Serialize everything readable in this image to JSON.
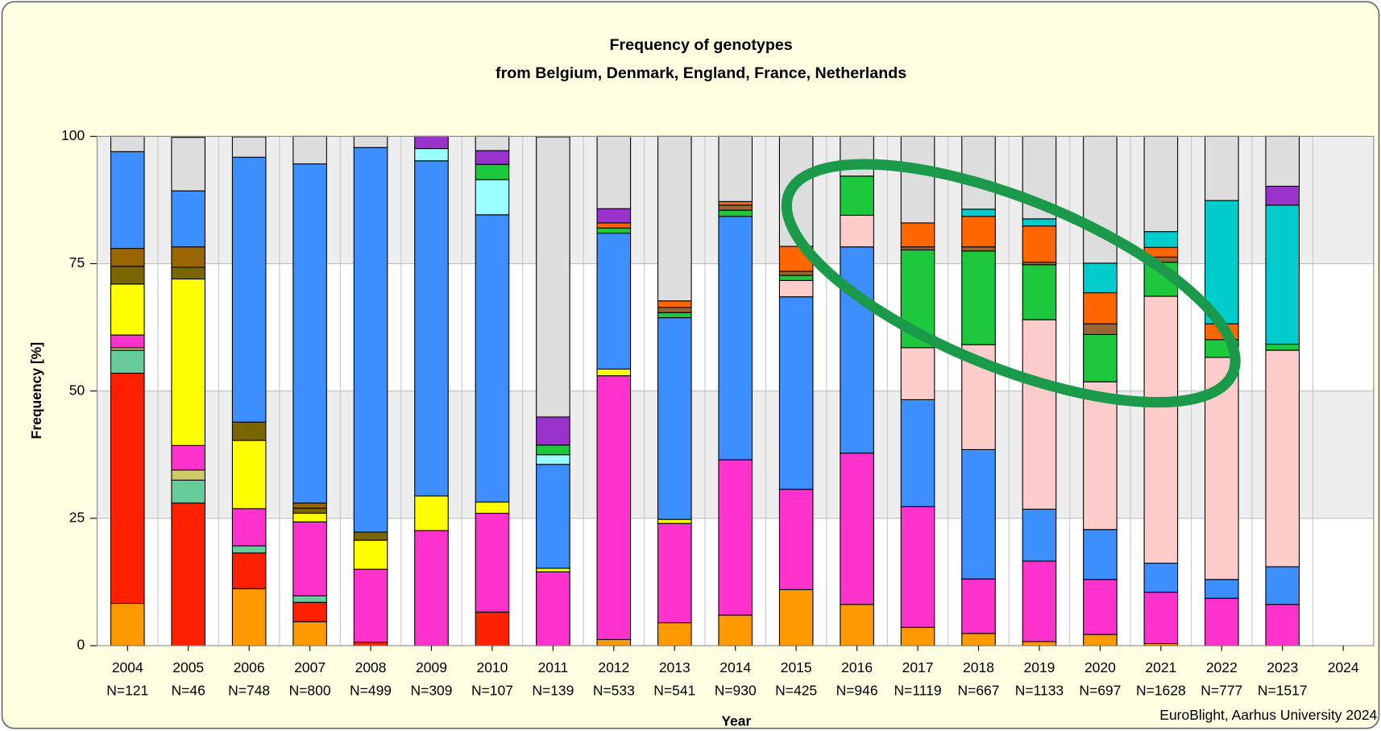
{
  "chart_data": {
    "type": "bar",
    "stacked": true,
    "title": "Frequency of genotypes",
    "subtitle": "from Belgium, Denmark, England, France, Netherlands",
    "ylabel": "Frequency [%]",
    "xlabel": "Year",
    "source": "EuroBlight, Aarhus University 2024",
    "categories": [
      "2004",
      "2005",
      "2006",
      "2007",
      "2008",
      "2009",
      "2010",
      "2011",
      "2012",
      "2013",
      "2014",
      "2015",
      "2016",
      "2017",
      "2018",
      "2019",
      "2020",
      "2021",
      "2022",
      "2023",
      "2024"
    ],
    "sample_sizes": [
      "N=121",
      "N=46",
      "N=748",
      "N=800",
      "N=499",
      "N=309",
      "N=107",
      "N=139",
      "N=533",
      "N=541",
      "N=930",
      "N=425",
      "N=946",
      "N=1119",
      "N=667",
      "N=1133",
      "N=697",
      "N=1628",
      "N=777",
      "N=1517",
      null
    ],
    "ylim": [
      0,
      100
    ],
    "yticks": [
      0,
      25,
      50,
      75,
      100
    ],
    "grid": true,
    "series": [
      {
        "color": "#ff9900",
        "values": [
          8.3,
          0,
          11.2,
          4.7,
          0,
          0,
          0,
          0,
          1.2,
          4.5,
          6,
          11,
          8.1,
          3.6,
          2.4,
          0.8,
          2.2,
          0.4,
          0,
          0,
          null
        ]
      },
      {
        "color": "#ff2000",
        "values": [
          45.2,
          28,
          7,
          3.8,
          0.7,
          0,
          6.6,
          0,
          0,
          0,
          0,
          0,
          0,
          0,
          0,
          0,
          0,
          0,
          0,
          0,
          null
        ]
      },
      {
        "color": "#66cc99",
        "values": [
          4.5,
          4.5,
          1.4,
          1.3,
          0,
          0,
          0,
          0,
          0,
          0,
          0,
          0,
          0,
          0,
          0,
          0,
          0,
          0,
          0,
          0,
          null
        ]
      },
      {
        "color": "#cccc66",
        "values": [
          0.5,
          2,
          0,
          0,
          0,
          0,
          0,
          0,
          0,
          0,
          0,
          0,
          0,
          0,
          0,
          0,
          0,
          0,
          0,
          0,
          null
        ]
      },
      {
        "color": "#ff33cc",
        "values": [
          2.5,
          4.8,
          7.3,
          14.5,
          14.3,
          22.6,
          19.4,
          14.5,
          51.8,
          19.5,
          30.5,
          19.7,
          29.7,
          23.7,
          10.7,
          15.8,
          10.8,
          10.1,
          9.3,
          8.1,
          null
        ]
      },
      {
        "color": "#ffff00",
        "values": [
          10,
          32.7,
          13.4,
          1.7,
          5.7,
          6.8,
          2.2,
          0.7,
          1.3,
          0.8,
          0,
          0,
          0,
          0,
          0,
          0,
          0,
          0,
          0,
          0,
          null
        ]
      },
      {
        "color": "#7a6600",
        "values": [
          3.5,
          2.3,
          3.6,
          1,
          1.6,
          0,
          0,
          0,
          0,
          0,
          0,
          0,
          0,
          0,
          0,
          0,
          0,
          0,
          0,
          0,
          null
        ]
      },
      {
        "color": "#996600",
        "values": [
          3.5,
          4,
          0,
          1,
          0,
          0,
          0,
          0,
          0,
          0,
          0,
          0,
          0,
          0,
          0,
          0,
          0,
          0,
          0,
          0,
          null
        ]
      },
      {
        "color": "#3d8eff",
        "values": [
          19,
          11,
          52,
          66.6,
          75.5,
          65.8,
          56.4,
          20.4,
          26.7,
          39.6,
          47.8,
          37.8,
          40.5,
          21,
          25.4,
          10.2,
          9.8,
          5.7,
          3.7,
          7.4,
          null
        ]
      },
      {
        "color": "#ffcccc",
        "values": [
          0,
          0,
          0,
          0,
          0,
          0,
          0,
          0,
          0,
          0,
          0,
          3.2,
          6.2,
          10.2,
          20.6,
          37.2,
          29,
          52.4,
          43.6,
          42.5,
          null
        ]
      },
      {
        "color": "#99ffff",
        "values": [
          0,
          0,
          0,
          0,
          0,
          2.4,
          6.9,
          1.9,
          0,
          0,
          0,
          0,
          0,
          0,
          0,
          0,
          0,
          0,
          0,
          0,
          null
        ]
      },
      {
        "color": "#1ec83c",
        "values": [
          0,
          0,
          0,
          0,
          0,
          0,
          3,
          1.9,
          1,
          1,
          1.2,
          1,
          7.7,
          19.2,
          18.4,
          10.8,
          9.3,
          6.7,
          3.5,
          1.2,
          null
        ]
      },
      {
        "color": "#996633",
        "values": [
          0,
          0,
          0,
          0,
          0,
          0,
          0,
          0,
          0,
          1,
          1,
          0.8,
          0,
          0.6,
          0.8,
          0.5,
          2.1,
          1,
          0,
          0,
          null
        ]
      },
      {
        "color": "#ff6600",
        "values": [
          0,
          0,
          0,
          0,
          0,
          0,
          0,
          0,
          1,
          1.3,
          0.7,
          4.9,
          0,
          4.7,
          6,
          7.1,
          6.1,
          1.9,
          3.1,
          0,
          null
        ]
      },
      {
        "color": "#00cccc",
        "values": [
          0,
          0,
          0,
          0,
          0,
          0,
          0,
          0,
          0,
          0,
          0,
          0,
          0,
          0,
          1.4,
          1.4,
          5.8,
          3.1,
          24.2,
          27.3,
          null
        ]
      },
      {
        "color": "#9933cc",
        "values": [
          0,
          0,
          0,
          0,
          0,
          2.4,
          2.7,
          5.5,
          2.8,
          0,
          0,
          0,
          0,
          0,
          0,
          0,
          0,
          0,
          0,
          3.7,
          null
        ]
      },
      {
        "color": "#dddddd",
        "values": [
          3,
          10.5,
          4,
          5.4,
          2.2,
          0,
          2.8,
          55,
          14.2,
          32.3,
          12.8,
          21.6,
          7.8,
          17,
          14.3,
          16.2,
          24.9,
          18.7,
          12.6,
          9.8,
          null
        ]
      }
    ]
  }
}
